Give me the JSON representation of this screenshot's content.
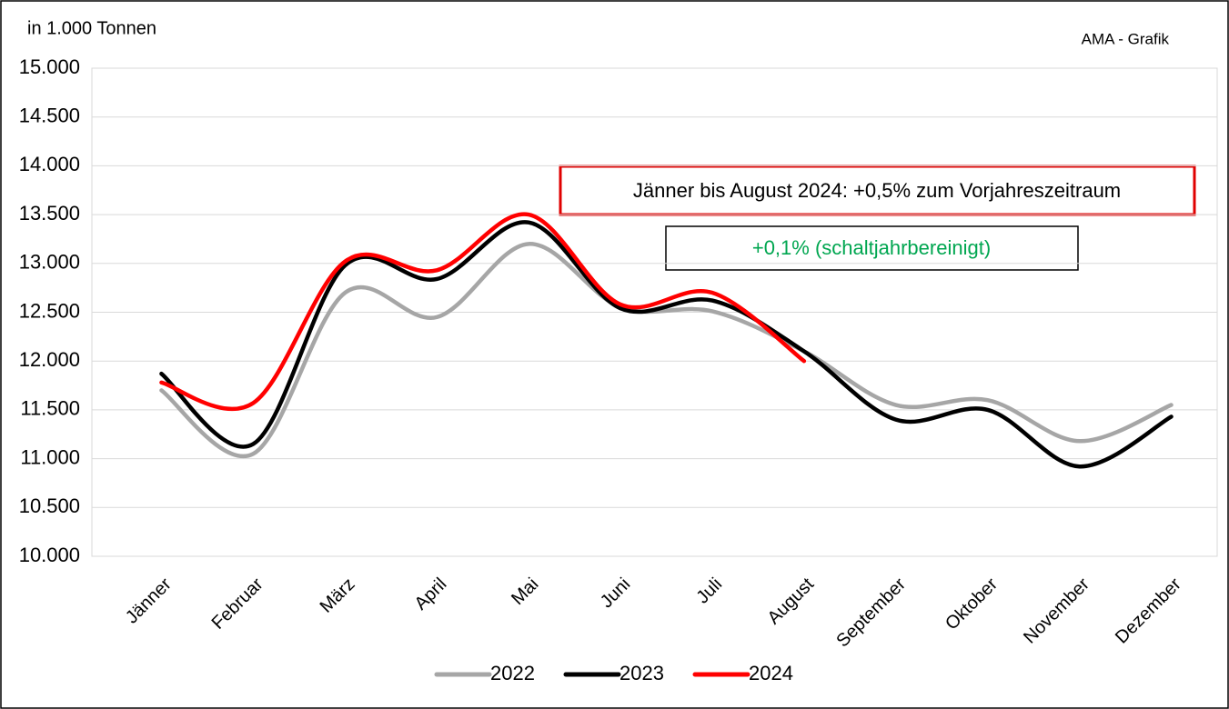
{
  "chart_data": {
    "type": "line",
    "unit_label": "in 1.000 Tonnen",
    "source": "AMA - Grafik",
    "annotations": [
      "Jänner bis August 2024: +0,5% zum Vorjahreszeitraum",
      "+0,1% (schaltjahrbereinigt)"
    ],
    "categories": [
      "Jänner",
      "Februar",
      "März",
      "April",
      "Mai",
      "Juni",
      "Juli",
      "August",
      "September",
      "Oktober",
      "November",
      "Dezember"
    ],
    "series": [
      {
        "name": "2022",
        "color": "#a6a6a6",
        "values": [
          11700,
          11050,
          12700,
          12450,
          13200,
          12550,
          12510,
          12100,
          11550,
          11600,
          11180,
          11550
        ]
      },
      {
        "name": "2023",
        "color": "#000000",
        "values": [
          11870,
          11150,
          12980,
          12840,
          13420,
          12540,
          12620,
          12100,
          11400,
          11500,
          10920,
          11430
        ]
      },
      {
        "name": "2024",
        "color": "#ff0000",
        "values": [
          11780,
          11570,
          13020,
          12930,
          13500,
          12580,
          12700,
          12000,
          null,
          null,
          null,
          null
        ]
      }
    ],
    "ylim": [
      10000,
      15000
    ],
    "yticks": [
      {
        "value": 10000,
        "label": "10.000"
      },
      {
        "value": 10500,
        "label": "10.500"
      },
      {
        "value": 11000,
        "label": "11.000"
      },
      {
        "value": 11500,
        "label": "11.500"
      },
      {
        "value": 12000,
        "label": "12.000"
      },
      {
        "value": 12500,
        "label": "12.500"
      },
      {
        "value": 13000,
        "label": "13.000"
      },
      {
        "value": 13500,
        "label": "13.500"
      },
      {
        "value": 14000,
        "label": "14.000"
      },
      {
        "value": 14500,
        "label": "14.500"
      },
      {
        "value": 15000,
        "label": "15.000"
      }
    ],
    "grid": true
  }
}
